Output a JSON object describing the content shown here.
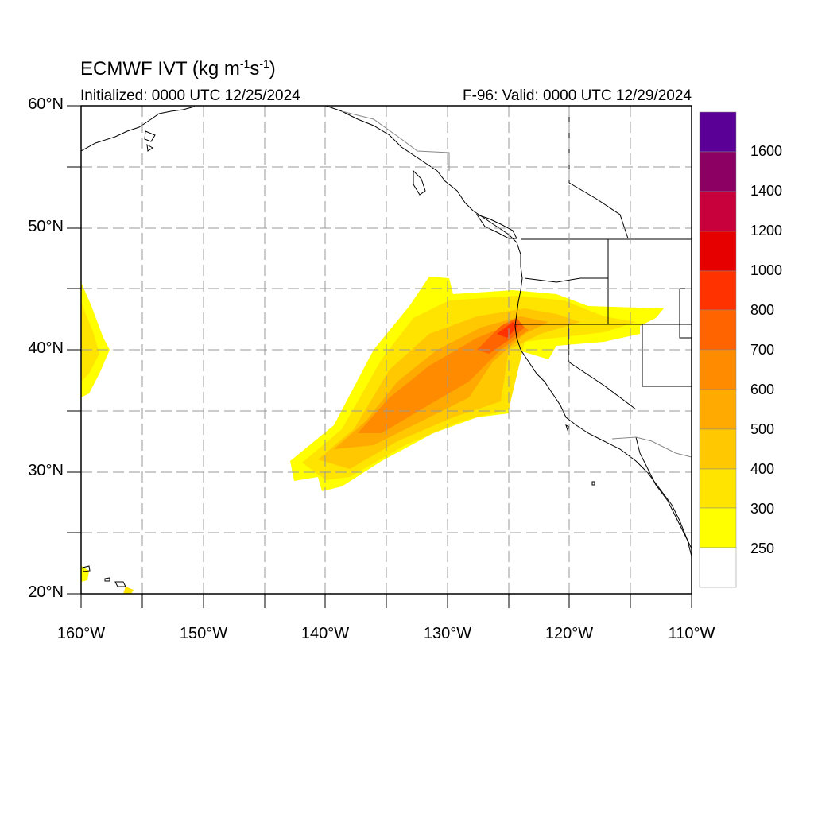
{
  "title": "ECMWF IVT",
  "title_units": "(kg m^-1 s^-1)",
  "initialized": "Initialized: 0000 UTC 12/25/2024",
  "valid": "F-96: Valid: 0000 UTC 12/29/2024",
  "lat_labels": [
    "60°N",
    "50°N",
    "40°N",
    "30°N",
    "20°N"
  ],
  "lon_labels": [
    "160°W",
    "150°W",
    "140°W",
    "130°W",
    "120°W",
    "110°W"
  ],
  "map_extent": {
    "lon": [
      -160,
      -110
    ],
    "lat": [
      20,
      60
    ]
  },
  "colorbar": {
    "levels": [
      "250",
      "300",
      "400",
      "500",
      "600",
      "700",
      "800",
      "1000",
      "1200",
      "1400",
      "1600"
    ],
    "colors": [
      "#ffff00",
      "#ffe400",
      "#ffc800",
      "#ffaa00",
      "#ff8c00",
      "#ff6400",
      "#ff3200",
      "#e60000",
      "#c8003c",
      "#8c0064",
      "#5a0096"
    ]
  }
}
